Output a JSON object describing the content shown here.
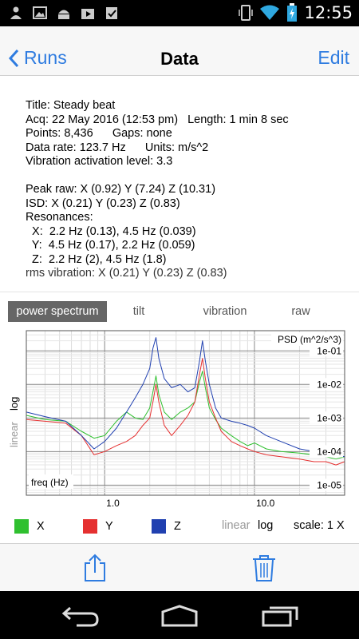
{
  "status_bar": {
    "time": "12:55",
    "left_icons": [
      "person-icon",
      "image-icon",
      "android-icon",
      "play-store-icon",
      "checklist-icon"
    ],
    "right_icons": [
      "vibrate-icon",
      "wifi-icon",
      "battery-charging-icon"
    ]
  },
  "nav": {
    "back_label": "Runs",
    "title": "Data",
    "edit_label": "Edit"
  },
  "info": {
    "title_line": "Title: Steady beat",
    "acq_line": "Acq: 22 May 2016 (12:53 pm)   Length: 1 min 8 sec",
    "points_line": "Points: 8,436      Gaps: none",
    "rate_line": "Data rate: 123.7 Hz      Units: m/s^2",
    "activation_line": "Vibration activation level: 3.3",
    "peak_line": "Peak raw: X (0.92) Y (7.24) Z (10.31)",
    "isd_line": "ISD: X (0.21) Y (0.23) Z (0.83)",
    "resonances_heading": "Resonances:",
    "res_x": "  X:  2.2 Hz (0.13), 4.5 Hz (0.039)",
    "res_y": "  Y:  4.5 Hz (0.17), 2.2 Hz (0.059)",
    "res_z": "  Z:  2.2 Hz (2), 4.5 Hz (1.8)",
    "rms_line": "rms vibration: X (0.21) Y (0.23) Z (0.83)"
  },
  "tabs": [
    {
      "label": "power spectrum",
      "active": true
    },
    {
      "label": "tilt",
      "active": false
    },
    {
      "label": "vibration",
      "active": false
    },
    {
      "label": "raw",
      "active": false
    }
  ],
  "chart_data": {
    "type": "line",
    "title": "PSD (m^2/s^3)",
    "xlabel": "freq (Hz)",
    "x_scale": "log",
    "y_scale": "log",
    "xlim": [
      0.3,
      40
    ],
    "ylim": [
      5e-06,
      0.4
    ],
    "x_tick_labels": [
      "1.0",
      "10.0"
    ],
    "y_tick_labels": [
      "1e-01",
      "1e-02",
      "1e-03",
      "1e-04",
      "1e-05"
    ],
    "y_scale_toggle": {
      "linear": "linear",
      "log": "log"
    },
    "grid": true,
    "series": [
      {
        "name": "X",
        "color": "#2fc02f",
        "x": [
          0.3,
          0.4,
          0.55,
          0.7,
          0.85,
          1.0,
          1.2,
          1.4,
          1.6,
          1.8,
          2.0,
          2.1,
          2.2,
          2.3,
          2.5,
          2.8,
          3.2,
          3.6,
          4.0,
          4.3,
          4.5,
          4.7,
          5.0,
          5.5,
          6.0,
          7.0,
          8.0,
          9.0,
          10.0,
          12.0,
          15.0,
          20.0,
          25.0,
          30.0,
          35.0,
          40.0
        ],
        "y": [
          0.0012,
          0.0009,
          0.0008,
          0.0004,
          0.00025,
          0.0003,
          0.0008,
          0.0015,
          0.001,
          0.0009,
          0.002,
          0.006,
          0.018,
          0.005,
          0.0015,
          0.0009,
          0.0015,
          0.002,
          0.003,
          0.012,
          0.025,
          0.008,
          0.002,
          0.0009,
          0.0005,
          0.0003,
          0.0002,
          0.00015,
          0.00018,
          0.00012,
          0.0001,
          9e-05,
          8e-05,
          7e-05,
          6e-05,
          7e-05
        ]
      },
      {
        "name": "Y",
        "color": "#e53030",
        "x": [
          0.3,
          0.4,
          0.55,
          0.7,
          0.85,
          1.0,
          1.2,
          1.4,
          1.6,
          1.8,
          2.0,
          2.1,
          2.2,
          2.3,
          2.5,
          2.8,
          3.2,
          3.6,
          4.0,
          4.3,
          4.5,
          4.7,
          5.0,
          5.5,
          6.0,
          7.0,
          8.0,
          9.0,
          10.0,
          12.0,
          15.0,
          20.0,
          25.0,
          30.0,
          35.0,
          40.0
        ],
        "y": [
          0.0009,
          0.0008,
          0.0007,
          0.0003,
          8e-05,
          0.0001,
          0.00015,
          0.0002,
          0.0003,
          0.0006,
          0.001,
          0.003,
          0.01,
          0.003,
          0.0006,
          0.0003,
          0.0006,
          0.0012,
          0.003,
          0.02,
          0.06,
          0.015,
          0.003,
          0.001,
          0.0004,
          0.0002,
          0.00015,
          0.00012,
          0.0001,
          8e-05,
          7e-05,
          6e-05,
          5e-05,
          5e-05,
          4e-05,
          5e-05
        ]
      },
      {
        "name": "Z",
        "color": "#2040b0",
        "x": [
          0.3,
          0.4,
          0.55,
          0.7,
          0.85,
          1.0,
          1.2,
          1.4,
          1.6,
          1.8,
          2.0,
          2.1,
          2.2,
          2.3,
          2.5,
          2.8,
          3.2,
          3.6,
          4.0,
          4.3,
          4.5,
          4.7,
          5.0,
          5.5,
          6.0,
          7.0,
          8.0,
          9.0,
          10.0,
          12.0,
          15.0,
          20.0,
          25.0,
          30.0,
          35.0,
          40.0
        ],
        "y": [
          0.0015,
          0.0011,
          0.0008,
          0.0003,
          0.00012,
          0.0002,
          0.0005,
          0.0015,
          0.004,
          0.01,
          0.03,
          0.12,
          0.25,
          0.06,
          0.015,
          0.008,
          0.01,
          0.006,
          0.008,
          0.05,
          0.2,
          0.05,
          0.01,
          0.002,
          0.001,
          0.0008,
          0.0007,
          0.0006,
          0.0005,
          0.0003,
          0.0002,
          0.00012,
          0.0001,
          8e-05,
          8e-05,
          7e-05
        ]
      }
    ]
  },
  "controls": {
    "legend": [
      {
        "label": "X",
        "color": "#2fc02f"
      },
      {
        "label": "Y",
        "color": "#e53030"
      },
      {
        "label": "Z",
        "color": "#2040b0"
      }
    ],
    "linear_label": "linear",
    "log_label": "log",
    "scale_label": "scale: 1 X"
  },
  "toolbar": {
    "share_icon": "share-icon",
    "trash_icon": "trash-icon",
    "accent": "#2f7ce0"
  },
  "system_nav": {
    "icons": [
      "back-icon",
      "home-icon",
      "recents-icon"
    ]
  }
}
